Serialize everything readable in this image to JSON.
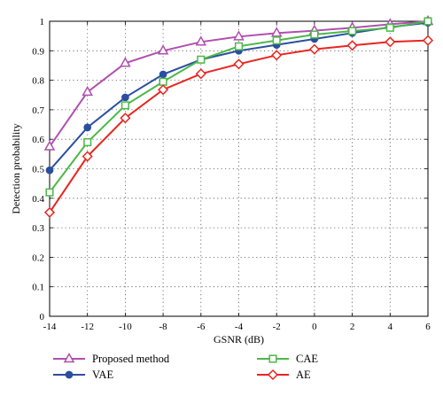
{
  "chart_data": {
    "type": "line",
    "xlabel": "GSNR (dB)",
    "ylabel": "Detection probability",
    "xlim": [
      -14,
      6
    ],
    "ylim": [
      0,
      1
    ],
    "grid": true,
    "legend_placement": "bottom",
    "x": [
      -14,
      -12,
      -10,
      -8,
      -6,
      -4,
      -2,
      0,
      2,
      4,
      6
    ],
    "x_tick_labels": [
      "-14",
      "-12",
      "-10",
      "-8",
      "-6",
      "-4",
      "-2",
      "0",
      "2",
      "4",
      "6"
    ],
    "y_ticks": [
      0,
      0.1,
      0.2,
      0.3,
      0.4,
      0.5,
      0.6,
      0.7,
      0.8,
      0.9,
      1
    ],
    "y_tick_labels": [
      "0",
      "0.1",
      "0.2",
      "0.3",
      "0.4",
      "0.5",
      "0.6",
      "0.7",
      "0.8",
      "0.9",
      "1"
    ],
    "series": [
      {
        "name": "Proposed method",
        "color": "#b04fb0",
        "marker": "triangle",
        "values": [
          0.575,
          0.76,
          0.858,
          0.9,
          0.93,
          0.948,
          0.96,
          0.968,
          0.978,
          0.99,
          1.0
        ]
      },
      {
        "name": "VAE",
        "color": "#2a4fa0",
        "marker": "circle",
        "values": [
          0.495,
          0.64,
          0.742,
          0.82,
          0.87,
          0.9,
          0.92,
          0.94,
          0.96,
          0.98,
          0.995
        ]
      },
      {
        "name": "CAE",
        "color": "#4cb848",
        "marker": "square",
        "values": [
          0.42,
          0.59,
          0.715,
          0.795,
          0.87,
          0.915,
          0.935,
          0.955,
          0.967,
          0.978,
          1.0
        ]
      },
      {
        "name": "AE",
        "color": "#e8251f",
        "marker": "diamond",
        "values": [
          0.352,
          0.542,
          0.672,
          0.768,
          0.822,
          0.855,
          0.885,
          0.905,
          0.918,
          0.93,
          0.935
        ]
      }
    ],
    "legend_order": [
      0,
      2,
      1,
      3
    ]
  }
}
